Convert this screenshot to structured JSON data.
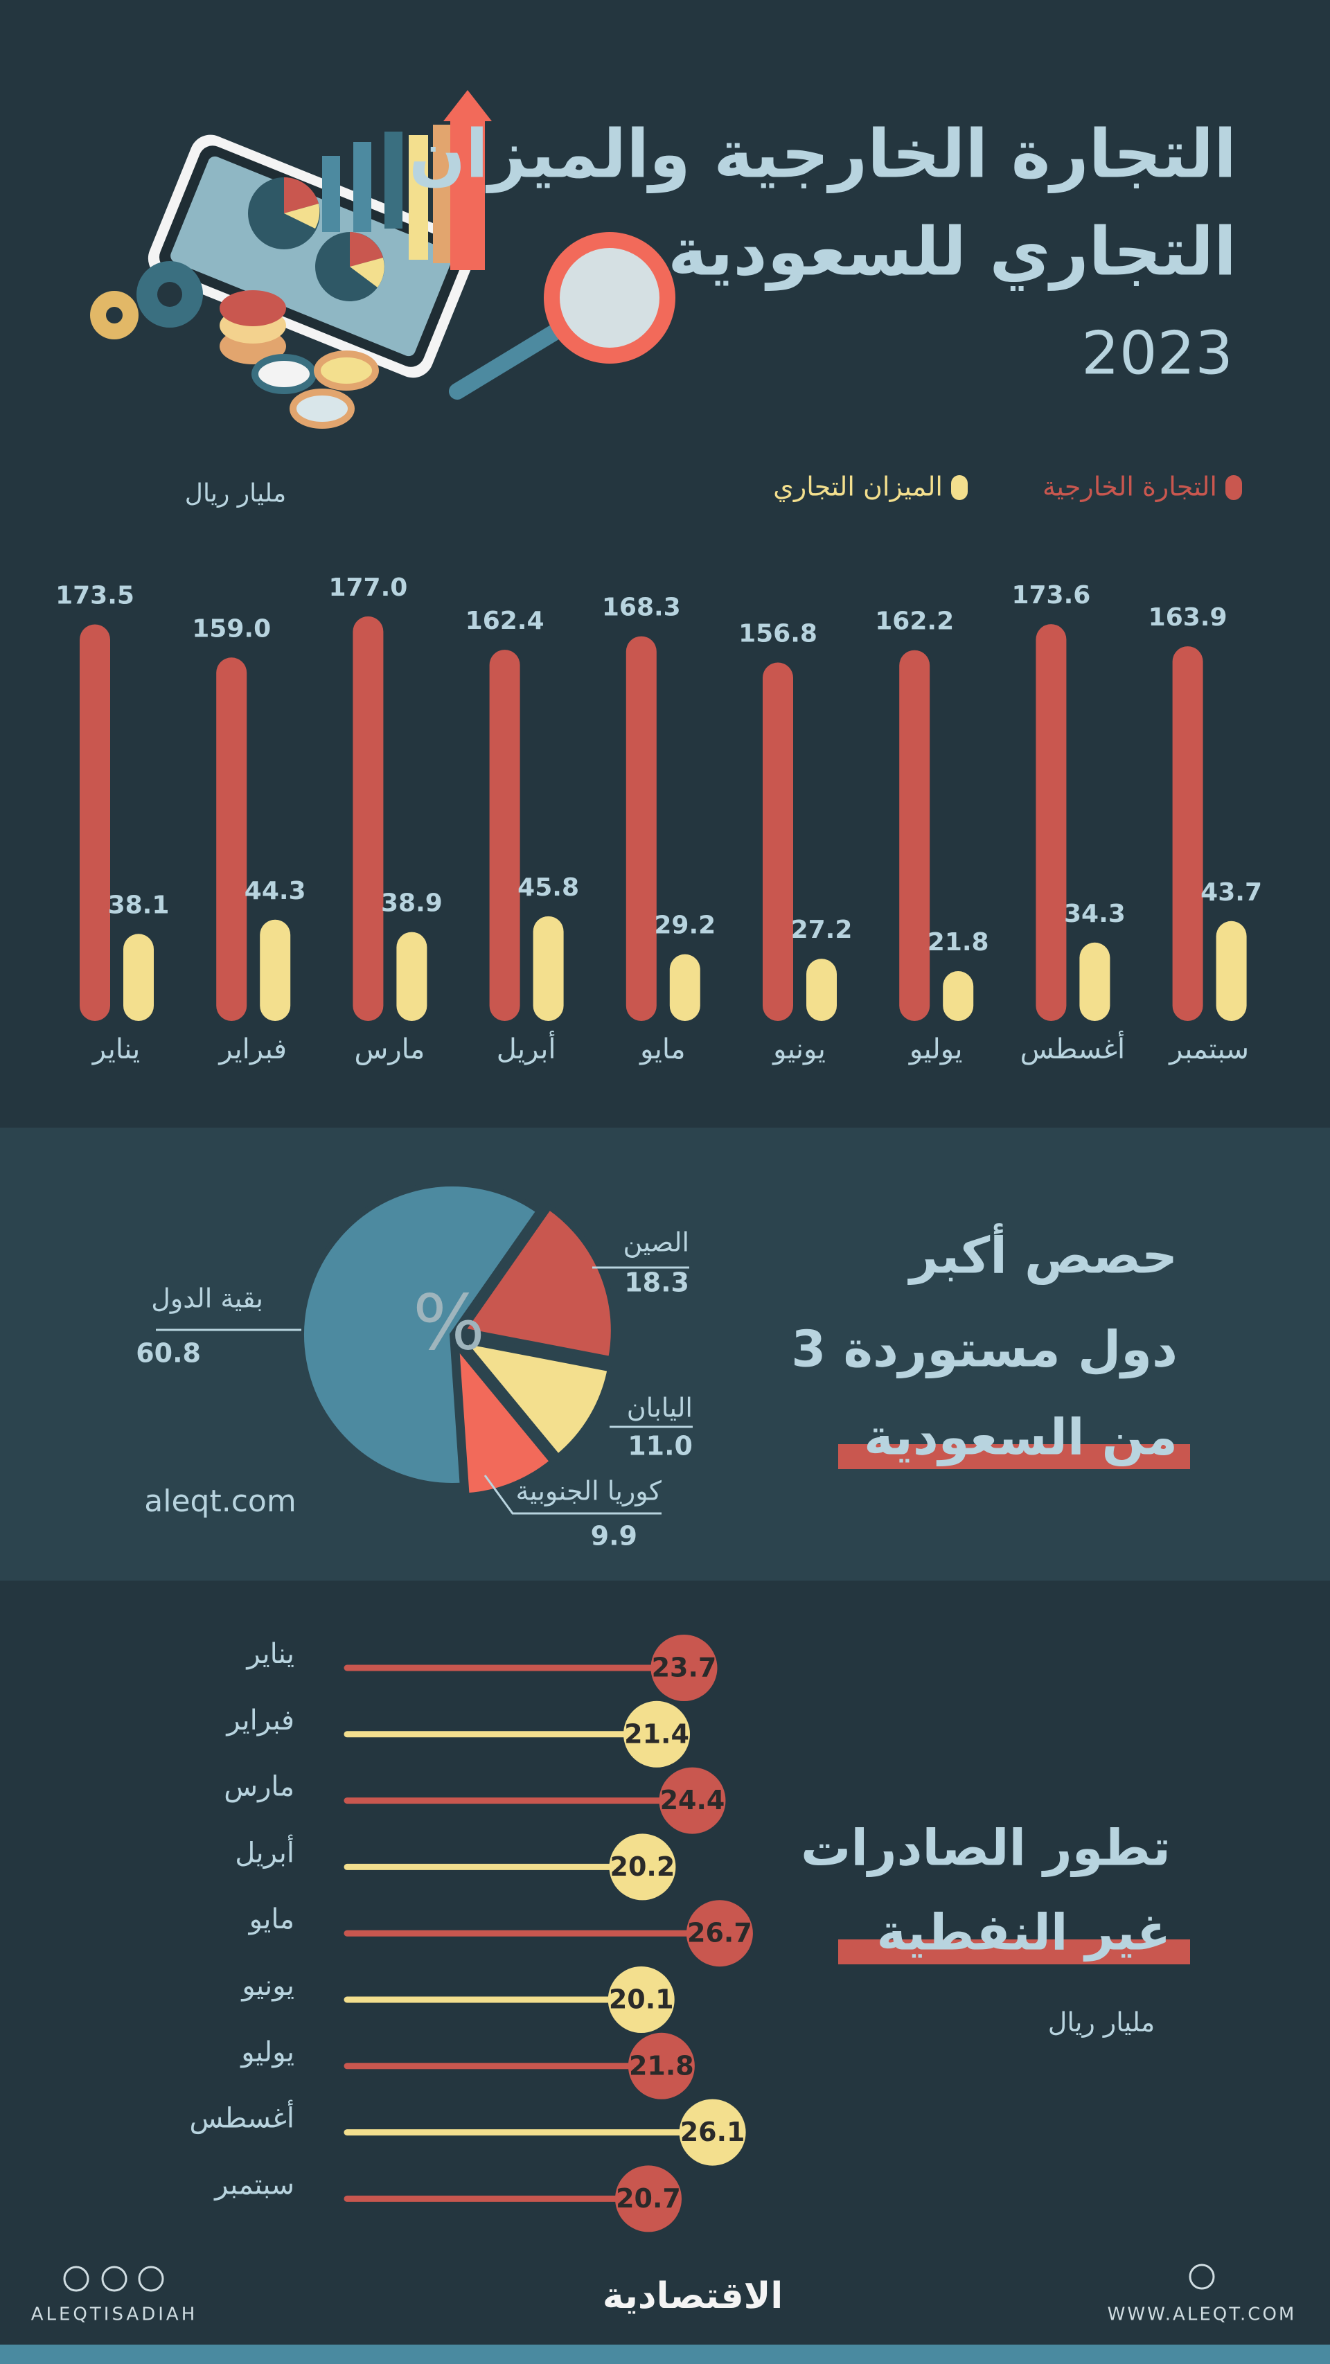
{
  "header": {
    "title": [
      "التجارة الخارجية والميزان",
      "التجاري للسعودية"
    ],
    "year": "2023"
  },
  "chart_data": [
    {
      "type": "bar",
      "unit": "مليار ريال",
      "categories": [
        "يناير",
        "فبراير",
        "مارس",
        "أبريل",
        "مايو",
        "يونيو",
        "يوليو",
        "أغسطس",
        "سبتمبر"
      ],
      "series": [
        {
          "name": "التجارة الخارجية",
          "color": "#c9574f",
          "values": [
            173.5,
            159.0,
            177.0,
            162.4,
            168.3,
            156.8,
            162.2,
            173.6,
            163.9
          ],
          "value_labels": [
            "173.5",
            "159.0",
            "177.0",
            "162.4",
            "168.3",
            "156.8",
            "162.2",
            "173.6",
            "163.9"
          ]
        },
        {
          "name": "الميزان التجاري",
          "color": "#f3df8e",
          "values": [
            38.1,
            44.3,
            38.9,
            45.8,
            29.2,
            27.2,
            21.8,
            34.3,
            43.7
          ],
          "value_labels": [
            "38.1",
            "44.3",
            "38.9",
            "45.8",
            "29.2",
            "27.2",
            "21.8",
            "34.3",
            "43.7"
          ]
        }
      ]
    },
    {
      "type": "pie",
      "title": [
        "حصص أكبر",
        "3 دول مستوردة",
        "من السعودية"
      ],
      "center_label": "%",
      "categories": [
        "الصين",
        "اليابان",
        "كوريا الجنوبية",
        "بقية الدول"
      ],
      "values": [
        18.3,
        11.0,
        9.9,
        60.8
      ],
      "value_labels": [
        "18.3",
        "11.0",
        "9.9",
        "60.8"
      ],
      "colors": [
        "#c9574f",
        "#f3df8e",
        "#f26a5a",
        "#4d8aa0"
      ],
      "source": "aleqt.com"
    },
    {
      "type": "lollipop",
      "title": [
        "تطور الصادرات",
        "غير النفطية"
      ],
      "unit": "مليار ريال",
      "categories": [
        "يناير",
        "فبراير",
        "مارس",
        "أبريل",
        "مايو",
        "يونيو",
        "يوليو",
        "أغسطس",
        "سبتمبر"
      ],
      "values": [
        23.7,
        21.4,
        24.4,
        20.2,
        26.7,
        20.1,
        21.8,
        26.1,
        20.7
      ],
      "colors": [
        "#c9574f",
        "#f3df8e",
        "#c9574f",
        "#f3df8e",
        "#c9574f",
        "#f3df8e",
        "#c9574f",
        "#f3df8e",
        "#c9574f"
      ]
    }
  ],
  "footer": {
    "handle": "ALEQTISADIAH",
    "logo": "الاقتصادية",
    "website": "WWW.ALEQT.COM"
  }
}
